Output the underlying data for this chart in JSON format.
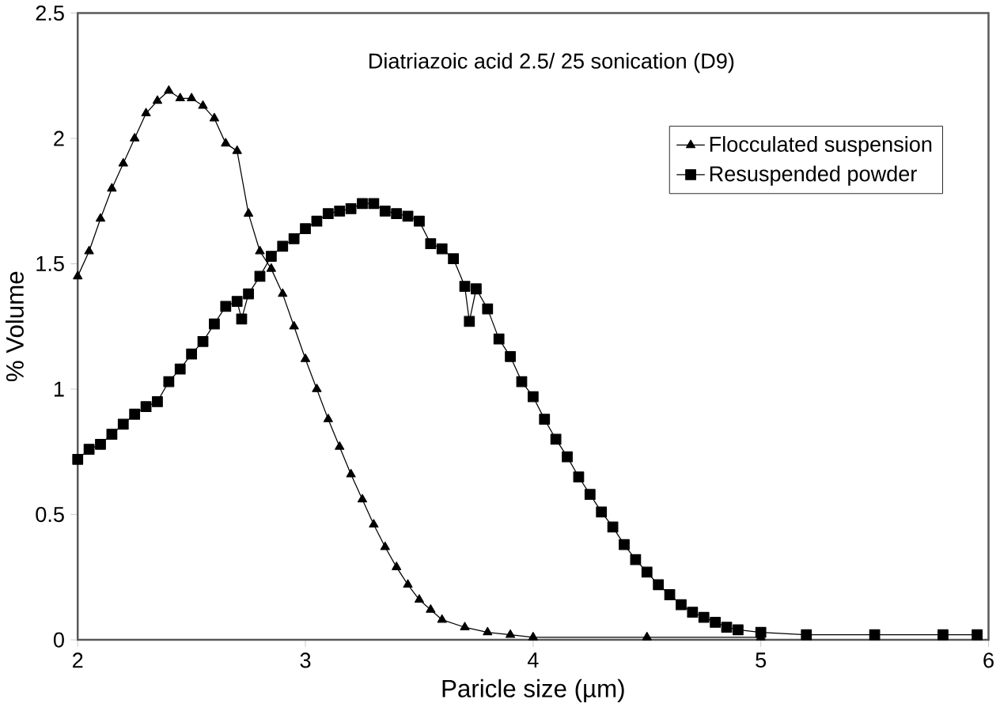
{
  "chart_data": {
    "type": "line",
    "title": "Diatriazoic acid 2.5/ 25 sonication (D9)",
    "xlabel": "Paricle size (µm)",
    "ylabel": "% Volume",
    "xlim": [
      2,
      6
    ],
    "xticks": [
      2,
      3,
      4,
      5,
      6
    ],
    "ylim": [
      0,
      2.5
    ],
    "yticks": [
      0,
      0.5,
      1,
      1.5,
      2,
      2.5
    ],
    "grid": false,
    "legend": "top right",
    "series": [
      {
        "name": "Flocculated suspension",
        "color": "#000000",
        "marker": "triangle",
        "x": [
          2.0,
          2.05,
          2.1,
          2.15,
          2.2,
          2.25,
          2.3,
          2.35,
          2.4,
          2.45,
          2.5,
          2.55,
          2.6,
          2.65,
          2.7,
          2.75,
          2.8,
          2.85,
          2.9,
          2.95,
          3.0,
          3.05,
          3.1,
          3.15,
          3.2,
          3.25,
          3.3,
          3.35,
          3.4,
          3.45,
          3.5,
          3.55,
          3.6,
          3.7,
          3.8,
          3.9,
          4.0,
          4.5,
          5.0
        ],
        "values": [
          1.45,
          1.55,
          1.68,
          1.8,
          1.9,
          2.0,
          2.1,
          2.15,
          2.19,
          2.16,
          2.16,
          2.13,
          2.08,
          1.98,
          1.95,
          1.7,
          1.55,
          1.48,
          1.38,
          1.25,
          1.12,
          1.0,
          0.88,
          0.77,
          0.66,
          0.56,
          0.46,
          0.37,
          0.29,
          0.22,
          0.16,
          0.12,
          0.08,
          0.05,
          0.03,
          0.02,
          0.01,
          0.01,
          0.01
        ]
      },
      {
        "name": "Resuspended powder",
        "color": "#000000",
        "marker": "square",
        "x": [
          2.0,
          2.05,
          2.1,
          2.15,
          2.2,
          2.25,
          2.3,
          2.35,
          2.4,
          2.45,
          2.5,
          2.55,
          2.6,
          2.65,
          2.7,
          2.72,
          2.75,
          2.8,
          2.85,
          2.9,
          2.95,
          3.0,
          3.05,
          3.1,
          3.15,
          3.2,
          3.25,
          3.3,
          3.35,
          3.4,
          3.45,
          3.5,
          3.55,
          3.6,
          3.65,
          3.7,
          3.72,
          3.75,
          3.8,
          3.85,
          3.9,
          3.95,
          4.0,
          4.05,
          4.1,
          4.15,
          4.2,
          4.25,
          4.3,
          4.35,
          4.4,
          4.45,
          4.5,
          4.55,
          4.6,
          4.65,
          4.7,
          4.75,
          4.8,
          4.85,
          4.9,
          5.0,
          5.2,
          5.5,
          5.8,
          5.95
        ],
        "values": [
          0.72,
          0.76,
          0.78,
          0.82,
          0.86,
          0.9,
          0.93,
          0.95,
          1.03,
          1.08,
          1.14,
          1.19,
          1.26,
          1.33,
          1.35,
          1.28,
          1.38,
          1.45,
          1.53,
          1.57,
          1.6,
          1.64,
          1.67,
          1.7,
          1.71,
          1.72,
          1.74,
          1.74,
          1.71,
          1.7,
          1.69,
          1.67,
          1.58,
          1.56,
          1.52,
          1.41,
          1.27,
          1.4,
          1.32,
          1.2,
          1.13,
          1.03,
          0.97,
          0.88,
          0.8,
          0.73,
          0.65,
          0.58,
          0.51,
          0.45,
          0.38,
          0.32,
          0.27,
          0.22,
          0.18,
          0.14,
          0.11,
          0.09,
          0.07,
          0.05,
          0.04,
          0.03,
          0.02,
          0.02,
          0.02,
          0.02
        ]
      }
    ]
  }
}
